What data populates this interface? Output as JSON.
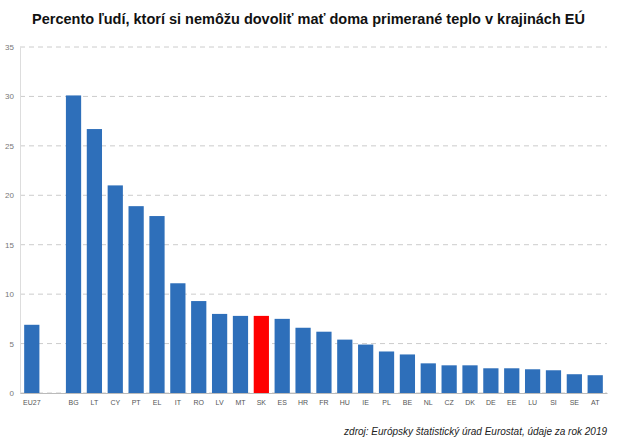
{
  "chart_data": {
    "type": "bar",
    "title": "Percento ľudí, ktorí si nemôžu dovoliť mať doma primerané teplo v krajinách EÚ",
    "source": "zdroj: Európsky štatistický úrad Eurostat, údaje za rok 2019",
    "categories": [
      "EU27",
      null,
      "BG",
      "LT",
      "CY",
      "PT",
      "EL",
      "IT",
      "RO",
      "LV",
      "MT",
      "SK",
      "ES",
      "HR",
      "FR",
      "HU",
      "IE",
      "PL",
      "BE",
      "NL",
      "CZ",
      "DK",
      "DE",
      "EE",
      "LU",
      "SI",
      "SE",
      "AT"
    ],
    "values": [
      6.9,
      null,
      30.1,
      26.7,
      21.0,
      18.9,
      17.9,
      11.1,
      9.3,
      8.0,
      7.8,
      7.8,
      7.5,
      6.6,
      6.2,
      5.4,
      4.9,
      4.2,
      3.9,
      3.0,
      2.8,
      2.8,
      2.5,
      2.5,
      2.4,
      2.3,
      1.9,
      1.8
    ],
    "colors": [
      "#2e6fba",
      null,
      "#2e6fba",
      "#2e6fba",
      "#2e6fba",
      "#2e6fba",
      "#2e6fba",
      "#2e6fba",
      "#2e6fba",
      "#2e6fba",
      "#2e6fba",
      "#ff0000",
      "#2e6fba",
      "#2e6fba",
      "#2e6fba",
      "#2e6fba",
      "#2e6fba",
      "#2e6fba",
      "#2e6fba",
      "#2e6fba",
      "#2e6fba",
      "#2e6fba",
      "#2e6fba",
      "#2e6fba",
      "#2e6fba",
      "#2e6fba",
      "#2e6fba",
      "#2e6fba"
    ],
    "ylim": [
      0,
      35
    ],
    "yticks": [
      0,
      5,
      10,
      15,
      20,
      25,
      30,
      35
    ],
    "grid": true
  }
}
